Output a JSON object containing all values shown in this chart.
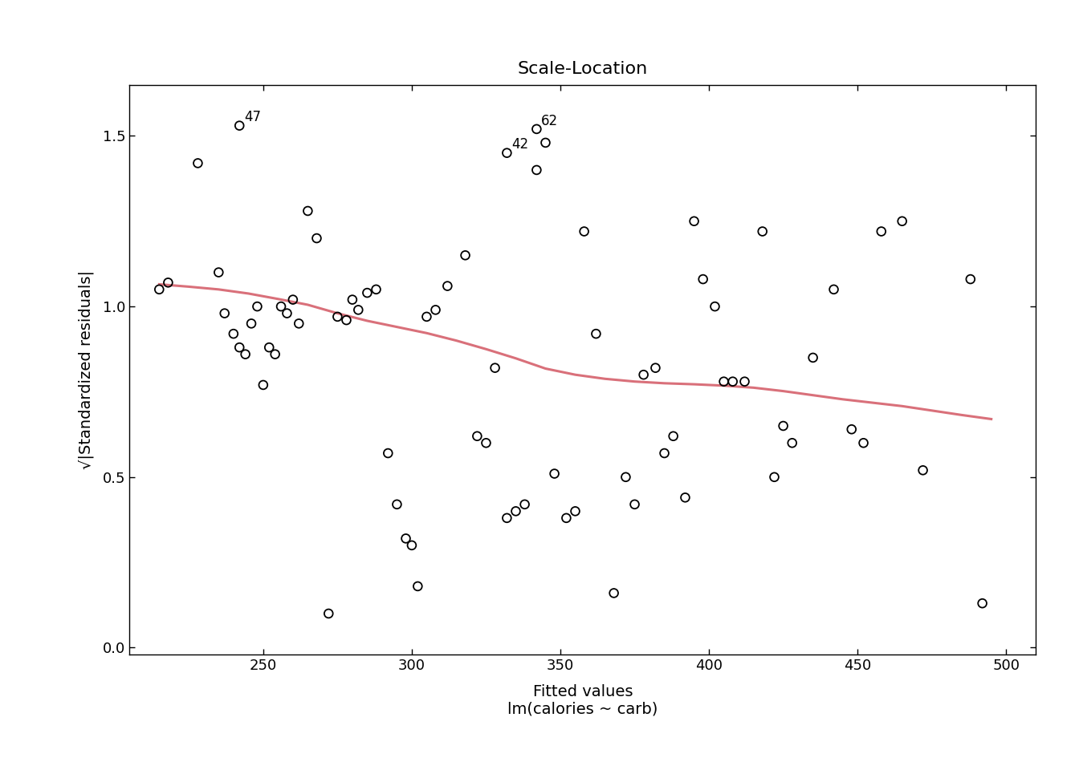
{
  "title": "Scale-Location",
  "xlabel": "Fitted values\nlm(calories ~ carb)",
  "ylabel": "√|Standardized residuals|",
  "xlim": [
    205,
    510
  ],
  "ylim": [
    -0.02,
    1.65
  ],
  "xticks": [
    250,
    300,
    350,
    400,
    450,
    500
  ],
  "yticks": [
    0.0,
    0.5,
    1.0,
    1.5
  ],
  "scatter_x": [
    215,
    218,
    228,
    235,
    237,
    240,
    242,
    244,
    246,
    248,
    250,
    252,
    254,
    256,
    258,
    260,
    262,
    265,
    268,
    272,
    275,
    278,
    280,
    282,
    285,
    288,
    292,
    295,
    298,
    300,
    302,
    305,
    308,
    312,
    318,
    322,
    325,
    328,
    332,
    335,
    338,
    342,
    345,
    348,
    352,
    355,
    358,
    362,
    368,
    372,
    375,
    378,
    382,
    385,
    388,
    392,
    395,
    398,
    402,
    405,
    408,
    412,
    418,
    422,
    425,
    428,
    435,
    442,
    448,
    452,
    458,
    465,
    472,
    488,
    492
  ],
  "scatter_y": [
    1.05,
    1.07,
    1.42,
    1.1,
    0.98,
    0.92,
    0.88,
    0.86,
    0.95,
    1.0,
    0.77,
    0.88,
    0.86,
    1.0,
    0.98,
    1.02,
    0.95,
    1.28,
    1.2,
    0.1,
    0.97,
    0.96,
    1.02,
    0.99,
    1.04,
    1.05,
    0.57,
    0.42,
    0.32,
    0.3,
    0.18,
    0.97,
    0.99,
    1.06,
    1.15,
    0.62,
    0.6,
    0.82,
    0.38,
    0.4,
    0.42,
    1.4,
    1.48,
    0.51,
    0.38,
    0.4,
    1.22,
    0.92,
    0.16,
    0.5,
    0.42,
    0.8,
    0.82,
    0.57,
    0.62,
    0.44,
    1.25,
    1.08,
    1.0,
    0.78,
    0.78,
    0.78,
    1.22,
    0.5,
    0.65,
    0.6,
    0.85,
    1.05,
    0.64,
    0.6,
    1.22,
    1.25,
    0.52,
    1.08,
    0.13
  ],
  "labeled_points": {
    "47": [
      242,
      1.53
    ],
    "42": [
      332,
      1.45
    ],
    "62": [
      342,
      1.52
    ]
  },
  "smooth_x": [
    215,
    225,
    235,
    245,
    255,
    265,
    275,
    285,
    295,
    305,
    315,
    325,
    335,
    345,
    355,
    365,
    375,
    385,
    395,
    405,
    415,
    425,
    435,
    445,
    455,
    465,
    475,
    485,
    495
  ],
  "smooth_y": [
    1.065,
    1.058,
    1.05,
    1.038,
    1.022,
    1.005,
    0.98,
    0.958,
    0.94,
    0.922,
    0.9,
    0.875,
    0.848,
    0.818,
    0.8,
    0.788,
    0.78,
    0.775,
    0.772,
    0.768,
    0.762,
    0.752,
    0.74,
    0.728,
    0.718,
    0.708,
    0.695,
    0.682,
    0.67
  ],
  "smooth_color": "#d9707a",
  "point_color": "black",
  "bg_color": "white",
  "title_fontsize": 16,
  "label_fontsize": 14,
  "tick_fontsize": 13
}
